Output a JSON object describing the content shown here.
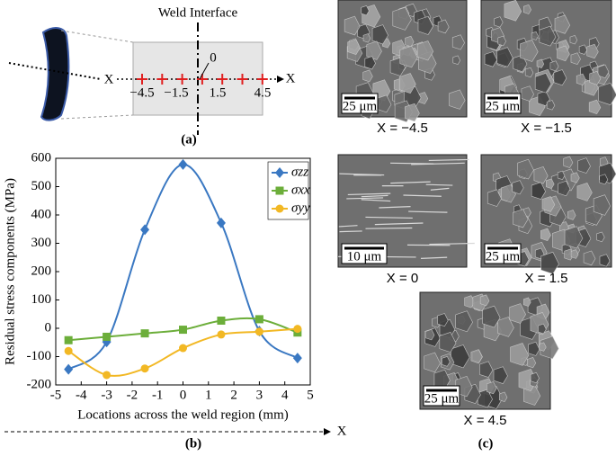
{
  "panel_a": {
    "title": "Weld Interface",
    "axis_left": "X",
    "axis_right": "X",
    "origin": "0",
    "tick_labels": [
      "−4.5",
      "−1.5",
      "1.5",
      "4.5"
    ],
    "label": "(a)"
  },
  "chart_data": {
    "type": "line",
    "xlabel": "Locations across the weld region (mm)",
    "ylabel": "Residual stress components (MPa)",
    "x": [
      -4.5,
      -3,
      -1.5,
      0,
      1.5,
      3,
      4.5
    ],
    "series": [
      {
        "name": "σzz",
        "color": "#3a78c2",
        "marker": "diamond",
        "values": [
          -145,
          -48,
          348,
          578,
          372,
          -10,
          -105
        ]
      },
      {
        "name": "σxx",
        "color": "#6cae3a",
        "marker": "square",
        "values": [
          -42,
          -30,
          -18,
          -5,
          27,
          32,
          -15
        ]
      },
      {
        "name": "σyy",
        "color": "#f2b824",
        "marker": "circle",
        "values": [
          -80,
          -165,
          -142,
          -70,
          -22,
          -12,
          -2
        ]
      }
    ],
    "xlim": [
      -5,
      5
    ],
    "xticks": [
      -5,
      -4,
      -3,
      -2,
      -1,
      0,
      1,
      2,
      3,
      4,
      5
    ],
    "ylim": [
      -200,
      600
    ],
    "yticks": [
      -200,
      -100,
      0,
      100,
      200,
      300,
      400,
      500,
      600
    ],
    "legend": "upper right"
  },
  "panel_b": {
    "axis_label": "X",
    "label": "(b)"
  },
  "panel_c": {
    "label": "(c)",
    "images": [
      {
        "caption": "X = −4.5",
        "scale_bar": "25 μm"
      },
      {
        "caption": "X = −1.5",
        "scale_bar": "25 μm"
      },
      {
        "caption": "X = 0",
        "scale_bar": "10 μm"
      },
      {
        "caption": "X = 1.5",
        "scale_bar": "25 μm"
      },
      {
        "caption": "X = 4.5",
        "scale_bar": "25 μm"
      }
    ]
  }
}
